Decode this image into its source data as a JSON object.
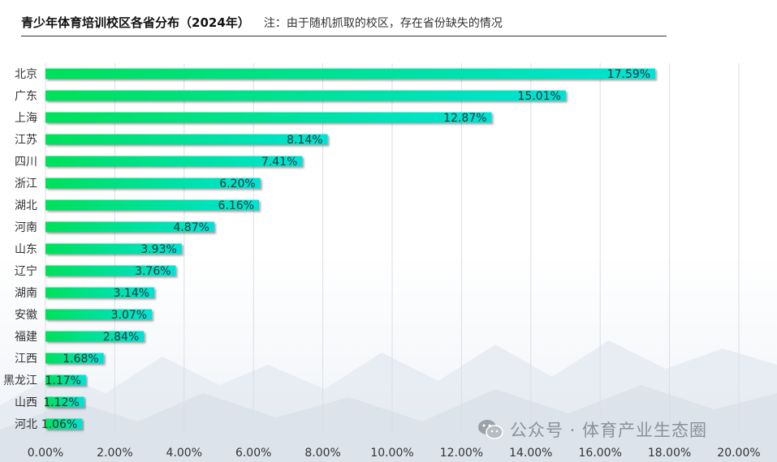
{
  "header": {
    "title": "青少年体育培训校区各省分布（2024年）",
    "note": "注：由于随机抓取的校区，存在省份缺失的情况"
  },
  "watermark": {
    "text": "公众号 · 体育产业生态圈",
    "icon": "wechat-icon"
  },
  "chart_data": {
    "type": "bar",
    "orientation": "horizontal",
    "title": "青少年体育培训校区各省分布（2024年）",
    "categories": [
      "北京",
      "广东",
      "上海",
      "江苏",
      "四川",
      "浙江",
      "湖北",
      "河南",
      "山东",
      "辽宁",
      "湖南",
      "安徽",
      "福建",
      "江西",
      "黑龙江",
      "山西",
      "河北"
    ],
    "values": [
      17.59,
      15.01,
      12.87,
      8.14,
      7.41,
      6.2,
      6.16,
      4.87,
      3.93,
      3.76,
      3.14,
      3.07,
      2.84,
      1.68,
      1.17,
      1.12,
      1.06
    ],
    "labels": [
      "17.59%",
      "15.01%",
      "12.87%",
      "8.14%",
      "7.41%",
      "6.20%",
      "6.16%",
      "4.87%",
      "3.93%",
      "3.76%",
      "3.14%",
      "3.07%",
      "2.84%",
      "1.68%",
      "1.17%",
      "1.12%",
      "1.06%"
    ],
    "xlim": [
      0,
      20
    ],
    "xticks": [
      "0.00%",
      "2.00%",
      "4.00%",
      "6.00%",
      "8.00%",
      "10.00%",
      "12.00%",
      "14.00%",
      "16.00%",
      "18.00%",
      "20.00%"
    ],
    "grid": true,
    "colors": {
      "bar_start": "#00e05a",
      "bar_end": "#00e2d6",
      "grid": "#d9dee5",
      "text": "#333333"
    }
  }
}
